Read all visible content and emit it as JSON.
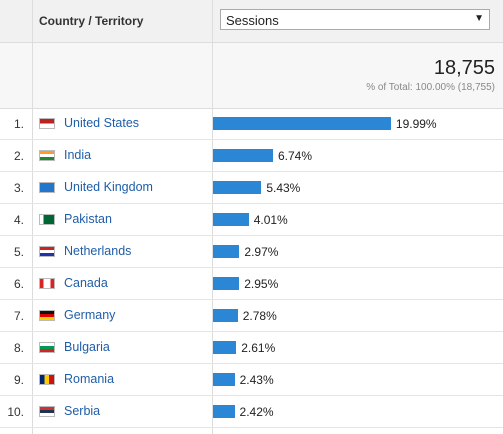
{
  "header": {
    "dimension": "Country / Territory",
    "metric": "Sessions"
  },
  "total": {
    "value": "18,755",
    "note": "% of Total: 100.00% (18,755)"
  },
  "table": {
    "rows": [
      {
        "rank": "1.",
        "country": "United States",
        "value": 19.99,
        "label": "19.99%"
      },
      {
        "rank": "2.",
        "country": "India",
        "value": 6.74,
        "label": "6.74%"
      },
      {
        "rank": "3.",
        "country": "United Kingdom",
        "value": 5.43,
        "label": "5.43%"
      },
      {
        "rank": "4.",
        "country": "Pakistan",
        "value": 4.01,
        "label": "4.01%"
      },
      {
        "rank": "5.",
        "country": "Netherlands",
        "value": 2.97,
        "label": "2.97%"
      },
      {
        "rank": "6.",
        "country": "Canada",
        "value": 2.95,
        "label": "2.95%"
      },
      {
        "rank": "7.",
        "country": "Germany",
        "value": 2.78,
        "label": "2.78%"
      },
      {
        "rank": "8.",
        "country": "Bulgaria",
        "value": 2.61,
        "label": "2.61%"
      },
      {
        "rank": "9.",
        "country": "Romania",
        "value": 2.43,
        "label": "2.43%"
      },
      {
        "rank": "10.",
        "country": "Serbia",
        "value": 2.42,
        "label": "2.42%"
      }
    ]
  }
}
